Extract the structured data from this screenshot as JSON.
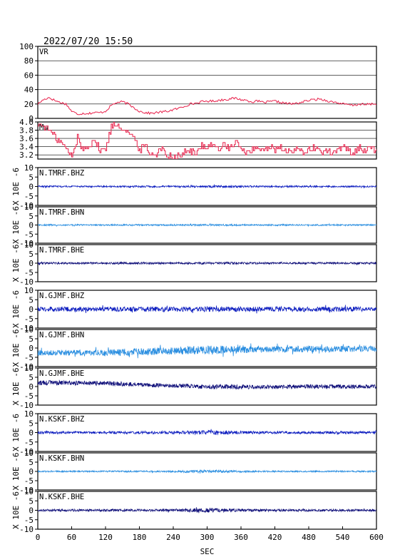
{
  "timestamp": "2022/07/20 15:50",
  "chart_data": [
    {
      "type": "line",
      "label": "VR",
      "ylim": [
        0,
        100
      ],
      "yticks": [
        "0",
        "20",
        "40",
        "60",
        "80",
        "100"
      ],
      "grid": true,
      "color": "#e8204a",
      "x": [
        0,
        10,
        20,
        30,
        40,
        50,
        60,
        70,
        80,
        90,
        100,
        110,
        120,
        130,
        140,
        150,
        160,
        170,
        180,
        190,
        200,
        210,
        220,
        230,
        240,
        250,
        260,
        270,
        280,
        290,
        300,
        310,
        320,
        330,
        340,
        350,
        360,
        370,
        380,
        390,
        400,
        410,
        420,
        430,
        440,
        450,
        460,
        470,
        480,
        490,
        500,
        510,
        520,
        530,
        540,
        550,
        560,
        570,
        580,
        590,
        600
      ],
      "y": [
        20,
        26,
        29,
        25,
        22,
        20,
        10,
        6,
        7,
        7,
        8,
        8,
        10,
        18,
        22,
        23,
        20,
        15,
        10,
        8,
        7,
        8,
        9,
        10,
        12,
        14,
        17,
        20,
        21,
        23,
        24,
        24,
        25,
        26,
        27,
        28,
        26,
        25,
        23,
        24,
        22,
        23,
        24,
        22,
        21,
        20,
        21,
        23,
        25,
        26,
        27,
        25,
        23,
        22,
        20,
        19,
        18,
        20,
        19,
        20,
        20
      ]
    },
    {
      "type": "line",
      "label": "Mw",
      "ylim": [
        3.1,
        4.0
      ],
      "yticks": [
        "3.2",
        "3.4",
        "3.6",
        "3.8",
        "4.0"
      ],
      "grid": true,
      "color": "#e8204a",
      "x": [
        0,
        10,
        20,
        30,
        40,
        50,
        60,
        70,
        80,
        90,
        100,
        110,
        120,
        130,
        140,
        150,
        160,
        170,
        180,
        190,
        200,
        210,
        220,
        230,
        240,
        250,
        260,
        270,
        280,
        290,
        300,
        310,
        320,
        330,
        340,
        350,
        360,
        370,
        380,
        390,
        400,
        410,
        420,
        430,
        440,
        450,
        460,
        470,
        480,
        490,
        500,
        510,
        520,
        530,
        540,
        550,
        560,
        570,
        580,
        590,
        600
      ],
      "y": [
        3.95,
        3.9,
        3.8,
        3.65,
        3.5,
        3.35,
        3.15,
        3.6,
        3.3,
        3.45,
        3.55,
        3.3,
        3.35,
        3.9,
        3.95,
        3.85,
        3.75,
        3.6,
        3.3,
        3.45,
        3.2,
        3.25,
        3.35,
        3.2,
        3.15,
        3.2,
        3.25,
        3.3,
        3.2,
        3.45,
        3.4,
        3.5,
        3.3,
        3.45,
        3.35,
        3.5,
        3.4,
        3.25,
        3.35,
        3.3,
        3.35,
        3.4,
        3.3,
        3.35,
        3.3,
        3.25,
        3.35,
        3.3,
        3.3,
        3.35,
        3.3,
        3.3,
        3.25,
        3.3,
        3.4,
        3.3,
        3.25,
        3.4,
        3.3,
        3.35,
        3.3
      ]
    },
    {
      "type": "line",
      "label": "N.TMRF.BHZ",
      "ylim": [
        -10,
        10
      ],
      "yticks": [
        "10",
        "5",
        "0",
        "-5",
        "-10"
      ],
      "color": "#1020c0",
      "x": [
        0,
        60,
        120,
        180,
        240,
        300,
        360,
        420,
        480,
        540,
        600
      ],
      "amplitude": [
        0.5,
        0.4,
        0.4,
        0.5,
        0.4,
        0.6,
        0.5,
        0.4,
        0.5,
        0.4,
        0.4
      ]
    },
    {
      "type": "line",
      "label": "N.TMRF.BHN",
      "ylim": [
        -10,
        10
      ],
      "yticks": [
        "10",
        "5",
        "0",
        "-5",
        "-10"
      ],
      "color": "#2a8ee0",
      "x": [
        0,
        60,
        120,
        180,
        240,
        300,
        360,
        420,
        480,
        540,
        600
      ],
      "amplitude": [
        0.4,
        0.4,
        0.4,
        0.4,
        0.4,
        0.5,
        0.4,
        0.4,
        0.4,
        0.4,
        0.4
      ]
    },
    {
      "type": "line",
      "label": "N.TMRF.BHE",
      "ylim": [
        -10,
        10
      ],
      "yticks": [
        "10",
        "5",
        "0",
        "-5",
        "-10"
      ],
      "color": "#10107a",
      "x": [
        0,
        60,
        120,
        180,
        240,
        300,
        360,
        420,
        480,
        540,
        600
      ],
      "amplitude": [
        0.6,
        0.5,
        0.5,
        0.6,
        0.5,
        0.6,
        0.6,
        0.5,
        0.5,
        0.5,
        0.5
      ]
    },
    {
      "type": "line",
      "label": "N.GJMF.BHZ",
      "ylim": [
        -10,
        10
      ],
      "yticks": [
        "10",
        "5",
        "0",
        "-5",
        "-10"
      ],
      "color": "#1020c0",
      "x": [
        0,
        60,
        120,
        180,
        240,
        300,
        360,
        420,
        480,
        540,
        600
      ],
      "amplitude": [
        1.3,
        1.2,
        1.2,
        1.3,
        1.3,
        1.4,
        1.3,
        1.3,
        1.3,
        1.3,
        1.2
      ]
    },
    {
      "type": "line",
      "label": "N.GJMF.BHN",
      "ylim": [
        -10,
        10
      ],
      "yticks": [
        "10",
        "5",
        "0",
        "-5",
        "-10"
      ],
      "color": "#2a8ee0",
      "x": [
        0,
        60,
        120,
        180,
        240,
        300,
        360,
        420,
        480,
        540,
        600
      ],
      "baseline": [
        -2.5,
        -2.5,
        -2.5,
        -2,
        -1.5,
        -1,
        -0.8,
        -0.6,
        -0.5,
        -0.5,
        -0.5
      ],
      "amplitude": [
        1.5,
        1.4,
        1.8,
        2.0,
        2.0,
        2.4,
        2.0,
        1.8,
        1.8,
        1.7,
        1.6
      ]
    },
    {
      "type": "line",
      "label": "N.GJMF.BHE",
      "ylim": [
        -10,
        10
      ],
      "yticks": [
        "10",
        "5",
        "0",
        "-5",
        "-10"
      ],
      "color": "#10107a",
      "x": [
        0,
        60,
        120,
        180,
        240,
        300,
        360,
        420,
        480,
        540,
        600
      ],
      "baseline": [
        2,
        2,
        1.8,
        1,
        0.5,
        0,
        -0.2,
        -0.2,
        0,
        0,
        0
      ],
      "amplitude": [
        1.3,
        1.2,
        1.2,
        1.1,
        1.1,
        1.3,
        1.2,
        1.1,
        1.1,
        1.1,
        1.0
      ]
    },
    {
      "type": "line",
      "label": "N.KSKF.BHZ",
      "ylim": [
        -10,
        10
      ],
      "yticks": [
        "10",
        "5",
        "0",
        "-5",
        "-10"
      ],
      "color": "#1020c0",
      "x": [
        0,
        60,
        120,
        180,
        240,
        300,
        360,
        420,
        480,
        540,
        600
      ],
      "amplitude": [
        0.7,
        0.6,
        0.7,
        0.7,
        0.8,
        1.2,
        0.8,
        0.7,
        0.7,
        0.7,
        0.6
      ]
    },
    {
      "type": "line",
      "label": "N.KSKF.BHN",
      "ylim": [
        -10,
        10
      ],
      "yticks": [
        "10",
        "5",
        "0",
        "-5",
        "-10"
      ],
      "color": "#2a8ee0",
      "x": [
        0,
        60,
        120,
        180,
        240,
        300,
        360,
        420,
        480,
        540,
        600
      ],
      "amplitude": [
        0.4,
        0.4,
        0.4,
        0.4,
        0.5,
        0.9,
        0.5,
        0.4,
        0.4,
        0.4,
        0.4
      ]
    },
    {
      "type": "line",
      "label": "N.KSKF.BHE",
      "ylim": [
        -10,
        10
      ],
      "yticks": [
        "10",
        "5",
        "0",
        "-5",
        "-10"
      ],
      "color": "#10107a",
      "x": [
        0,
        60,
        120,
        180,
        240,
        300,
        360,
        420,
        480,
        540,
        600
      ],
      "amplitude": [
        0.6,
        0.6,
        0.6,
        0.6,
        0.8,
        1.1,
        0.8,
        0.6,
        0.6,
        0.6,
        0.6
      ]
    }
  ],
  "seismo_ylabel": "X 10E -6",
  "xaxis": {
    "label": "SEC",
    "xlim": [
      0,
      600
    ],
    "ticks": [
      "0",
      "60",
      "120",
      "180",
      "240",
      "300",
      "360",
      "420",
      "480",
      "540",
      "600"
    ]
  }
}
